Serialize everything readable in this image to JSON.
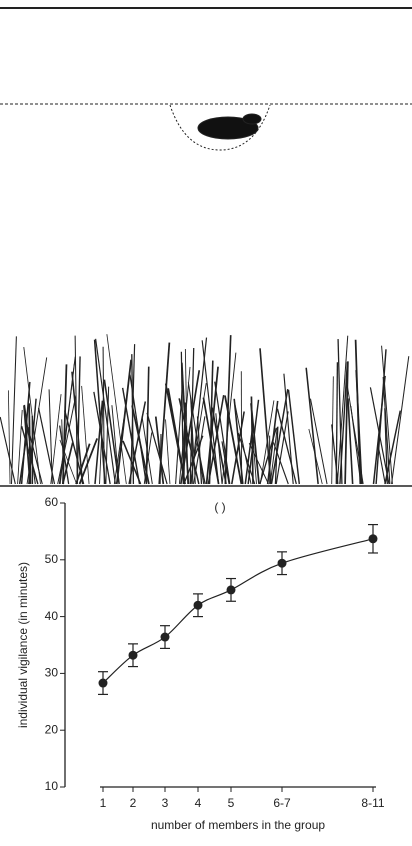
{
  "chart_data": {
    "type": "line",
    "annotation": "( )",
    "y_label": "individual vigilance (in minutes)",
    "x_label": "number of members in the group",
    "categories": [
      "1",
      "2",
      "3",
      "4",
      "5",
      "6-7",
      "8-11"
    ],
    "values": [
      28.3,
      33.2,
      36.4,
      42,
      44.7,
      49.4,
      53.7
    ],
    "errors": [
      2,
      2,
      2,
      2,
      2,
      2,
      2.5
    ],
    "color": "#222222",
    "ylim": [
      10,
      60
    ],
    "yticks": [
      10,
      20,
      30,
      40,
      50,
      60
    ]
  }
}
